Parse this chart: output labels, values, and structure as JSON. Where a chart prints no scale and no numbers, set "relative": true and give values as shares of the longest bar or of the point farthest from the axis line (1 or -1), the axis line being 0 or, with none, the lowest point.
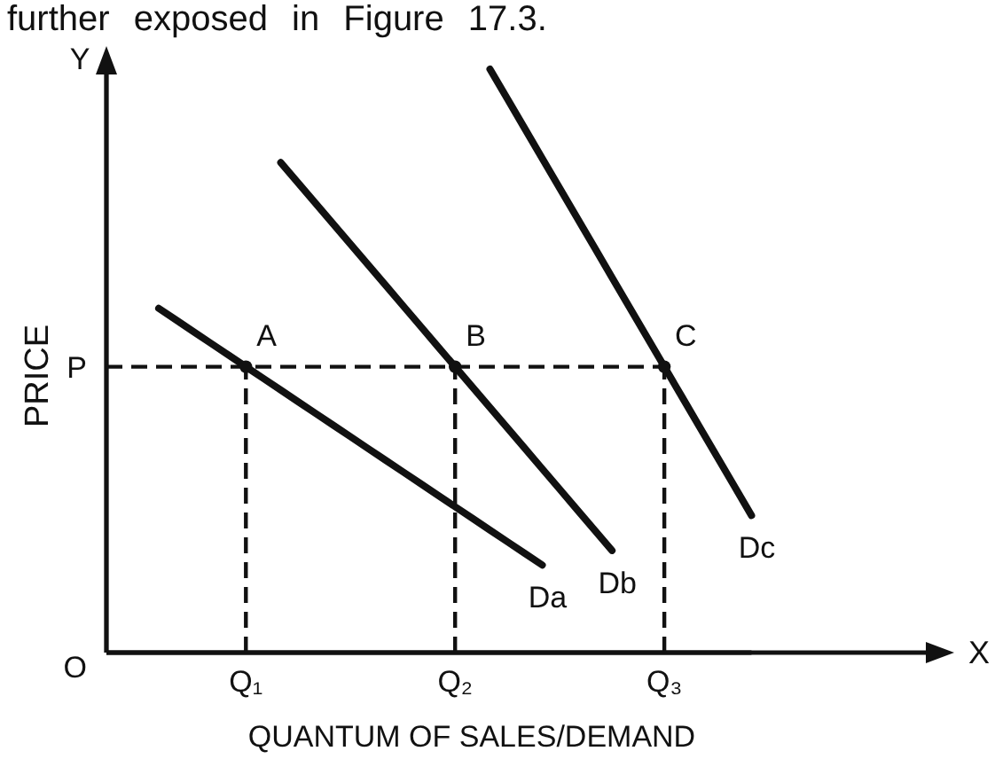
{
  "chart_data": {
    "type": "line",
    "relative": true,
    "annotations": [
      "further exposed in Figure 17.3.",
      "Y",
      "X",
      "O",
      {
        "text": "A",
        "x": "Q₁",
        "y": 0.49
      },
      {
        "text": "B",
        "x": "Q₂",
        "y": 0.49
      },
      {
        "text": "C",
        "x": "Q₃",
        "y": 0.49
      }
    ],
    "xlabel": "QUANTUM OF SALES/DEMAND",
    "ylabel": "PRICE",
    "categories": [
      null,
      null,
      null,
      null,
      null,
      null,
      null,
      null,
      "Q₁",
      null,
      null,
      null,
      null,
      null,
      null,
      null,
      null,
      null,
      null,
      null,
      "Q₂",
      null,
      null,
      null,
      null,
      null,
      null,
      null,
      null,
      null,
      null,
      null,
      "Q₃",
      null,
      null,
      null,
      null,
      null
    ],
    "series": [
      {
        "name": "P",
        "color": "#111111",
        "line_style": "dashed",
        "values": [
          0.49,
          0.49,
          0.49,
          0.49,
          0.49,
          0.49,
          0.49,
          0.49,
          0.49,
          0.49,
          0.49,
          0.49,
          0.49,
          0.49,
          0.49,
          0.49,
          0.49,
          0.49,
          0.49,
          0.49,
          0.49,
          0.49,
          0.49,
          0.49,
          0.49,
          0.49,
          0.49,
          0.49,
          0.49,
          0.49,
          0.49,
          0.49,
          0.49,
          null,
          null,
          null,
          null,
          null
        ]
      },
      {
        "name": "Da",
        "color": "#111111",
        "values": [
          null,
          null,
          null,
          0.59,
          0.57,
          0.55,
          0.53,
          0.51,
          0.49,
          0.47,
          0.45,
          0.43,
          0.41,
          0.39,
          0.37,
          0.35,
          0.33,
          0.31,
          0.29,
          0.27,
          0.25,
          0.23,
          0.21,
          0.19,
          0.17,
          0.15,
          null,
          null,
          null,
          null,
          null,
          null,
          null,
          null,
          null,
          null,
          null,
          null
        ]
      },
      {
        "name": "Db",
        "color": "#111111",
        "values": [
          null,
          null,
          null,
          null,
          null,
          null,
          null,
          null,
          null,
          null,
          0.84,
          0.805,
          0.77,
          0.735,
          0.7,
          0.665,
          0.63,
          0.595,
          0.56,
          0.525,
          0.49,
          0.455,
          0.42,
          0.385,
          0.35,
          0.315,
          0.28,
          0.245,
          0.21,
          0.175,
          null,
          null,
          null,
          null,
          null,
          null,
          null,
          null
        ]
      },
      {
        "name": "Dc",
        "color": "#111111",
        "values": [
          null,
          null,
          null,
          null,
          null,
          null,
          null,
          null,
          null,
          null,
          null,
          null,
          null,
          null,
          null,
          null,
          null,
          null,
          null,
          null,
          null,
          null,
          1,
          0.949,
          0.898,
          0.847,
          0.796,
          0.745,
          0.694,
          0.643,
          0.592,
          0.541,
          0.49,
          0.439,
          0.388,
          0.337,
          0.286,
          0.235
        ]
      },
      {
        "type": "lollipop",
        "color": "#111111",
        "line_style": "dashed",
        "marker": "circle",
        "values": [
          null,
          null,
          null,
          null,
          null,
          null,
          null,
          null,
          0.49,
          null,
          null,
          null,
          null,
          null,
          null,
          null,
          null,
          null,
          null,
          null,
          0.49,
          null,
          null,
          null,
          null,
          null,
          null,
          null,
          null,
          null,
          null,
          null,
          0.49,
          null,
          null,
          null,
          null,
          null
        ]
      }
    ]
  }
}
